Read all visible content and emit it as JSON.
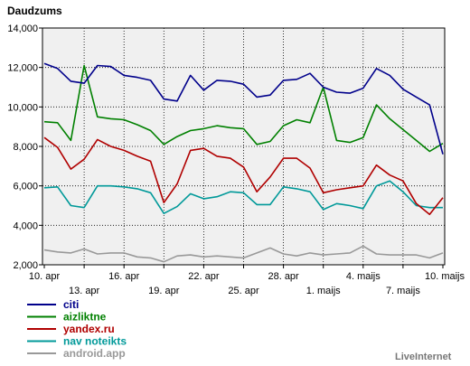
{
  "chart_data": {
    "type": "line",
    "ylabel": "Daudzums",
    "ylim": [
      2000,
      14000
    ],
    "yticks": [
      2000,
      4000,
      6000,
      8000,
      10000,
      12000,
      14000
    ],
    "ytick_labels": [
      "2,000",
      "4,000",
      "6,000",
      "8,000",
      "10,000",
      "12,000",
      "14,000"
    ],
    "grid": true,
    "x": [
      "10. apr",
      "11. apr",
      "12. apr",
      "13. apr",
      "14. apr",
      "15. apr",
      "16. apr",
      "17. apr",
      "18. apr",
      "19. apr",
      "20. apr",
      "21. apr",
      "22. apr",
      "23. apr",
      "24. apr",
      "25. apr",
      "26. apr",
      "27. apr",
      "28. apr",
      "29. apr",
      "30. apr",
      "1. maijs",
      "2. maijs",
      "3. maijs",
      "4. maijs",
      "5. maijs",
      "6. maijs",
      "7. maijs",
      "8. maijs",
      "9. maijs",
      "10. maijs"
    ],
    "xtick_labels_top": [
      {
        "index": 0,
        "label": "10. apr"
      },
      {
        "index": 6,
        "label": "16. apr"
      },
      {
        "index": 12,
        "label": "22. apr"
      },
      {
        "index": 18,
        "label": "28. apr"
      },
      {
        "index": 24,
        "label": "4. maijs"
      },
      {
        "index": 30,
        "label": "10. maijs"
      }
    ],
    "xtick_labels_bottom": [
      {
        "index": 3,
        "label": "13. apr"
      },
      {
        "index": 9,
        "label": "19. apr"
      },
      {
        "index": 15,
        "label": "25. apr"
      },
      {
        "index": 21,
        "label": "1. maijs"
      },
      {
        "index": 27,
        "label": "7. maijs"
      }
    ],
    "series": [
      {
        "name": "citi",
        "color": "#00008b",
        "values": [
          12200,
          11950,
          11300,
          11200,
          12100,
          12050,
          11600,
          11500,
          11350,
          10400,
          10300,
          11600,
          10850,
          11350,
          11300,
          11150,
          10500,
          10600,
          11350,
          11400,
          11700,
          11000,
          10750,
          10700,
          10950,
          11950,
          11600,
          10900,
          10500,
          10100,
          7600
        ]
      },
      {
        "name": "aizliktne",
        "color": "#008000",
        "values": [
          9250,
          9200,
          8300,
          12100,
          9500,
          9400,
          9350,
          9100,
          8800,
          8100,
          8500,
          8800,
          8900,
          9050,
          8950,
          8900,
          8100,
          8250,
          9050,
          9350,
          9200,
          11000,
          8300,
          8200,
          8450,
          10100,
          9400,
          8850,
          8300,
          7750,
          8150
        ]
      },
      {
        "name": "yandex.ru",
        "color": "#b00000",
        "values": [
          8450,
          7950,
          6850,
          7350,
          8350,
          8000,
          7800,
          7500,
          7250,
          5150,
          6100,
          7800,
          7900,
          7500,
          7400,
          6950,
          5700,
          6450,
          7400,
          7400,
          6900,
          5650,
          5800,
          5900,
          6000,
          7050,
          6550,
          6250,
          5100,
          4550,
          5400
        ]
      },
      {
        "name": "nav noteikts",
        "color": "#009999",
        "values": [
          5900,
          5950,
          5000,
          4900,
          6000,
          6000,
          5950,
          5850,
          5650,
          4600,
          4950,
          5600,
          5350,
          5450,
          5700,
          5650,
          5050,
          5050,
          5950,
          5850,
          5700,
          4800,
          5100,
          5000,
          4850,
          6000,
          6250,
          5700,
          5000,
          4900,
          4900
        ]
      },
      {
        "name": "android.app",
        "color": "#999999",
        "values": [
          2750,
          2650,
          2600,
          2800,
          2550,
          2600,
          2600,
          2400,
          2350,
          2150,
          2450,
          2500,
          2400,
          2450,
          2400,
          2350,
          2600,
          2850,
          2550,
          2450,
          2600,
          2500,
          2550,
          2600,
          2950,
          2550,
          2500,
          2500,
          2500,
          2350,
          2600
        ]
      }
    ]
  },
  "credit": "LiveInternet"
}
